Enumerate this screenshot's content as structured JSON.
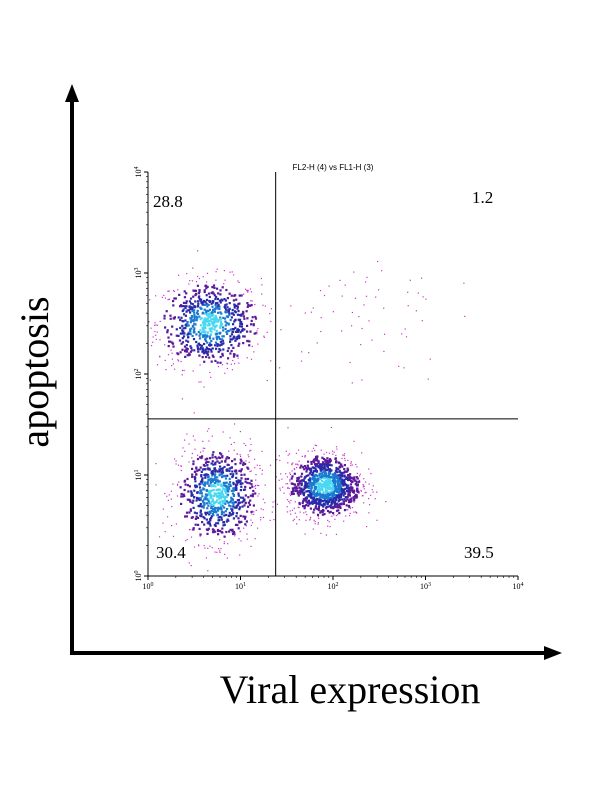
{
  "chart_data": {
    "type": "scatter",
    "title": "FL2-H (4) vs FL1-H (3)",
    "xlabel": "Viral expression",
    "ylabel": "apoptosis",
    "x_scale": "log",
    "y_scale": "log",
    "xlim": [
      1,
      10000
    ],
    "ylim": [
      1,
      10000
    ],
    "x_ticks": [
      {
        "value": 1,
        "base": "10",
        "exp": "0"
      },
      {
        "value": 10,
        "base": "10",
        "exp": "1"
      },
      {
        "value": 100,
        "base": "10",
        "exp": "2"
      },
      {
        "value": 1000,
        "base": "10",
        "exp": "3"
      },
      {
        "value": 10000,
        "base": "10",
        "exp": "4"
      }
    ],
    "y_ticks": [
      {
        "value": 1,
        "base": "10",
        "exp": "0"
      },
      {
        "value": 10,
        "base": "10",
        "exp": "1"
      },
      {
        "value": 100,
        "base": "10",
        "exp": "2"
      },
      {
        "value": 1000,
        "base": "10",
        "exp": "3"
      },
      {
        "value": 10000,
        "base": "10",
        "exp": "4"
      }
    ],
    "gates": {
      "x": 24,
      "y": 36
    },
    "quadrant_percentages": {
      "upper_left": "28.8",
      "upper_right": "1.2",
      "lower_left": "30.4",
      "lower_right": "39.5"
    },
    "populations": [
      {
        "center_x": 4.5,
        "center_y": 320,
        "spread_x_decades": 0.28,
        "spread_y_decades": 0.22,
        "fraction": 28.8
      },
      {
        "center_x": 5.5,
        "center_y": 6.5,
        "spread_x_decades": 0.22,
        "spread_y_decades": 0.24,
        "fraction": 30.4
      },
      {
        "center_x": 80,
        "center_y": 8,
        "spread_x_decades": 0.2,
        "spread_y_decades": 0.16,
        "fraction": 39.5
      },
      {
        "center_x": 200,
        "center_y": 400,
        "spread_x_decades": 0.45,
        "spread_y_decades": 0.35,
        "fraction": 1.2
      }
    ],
    "density_colors": [
      "#cc33cc",
      "#5a1a9a",
      "#2a2aa8",
      "#1a7ad0",
      "#4ad8f0"
    ],
    "grid": false,
    "legend": "none"
  }
}
